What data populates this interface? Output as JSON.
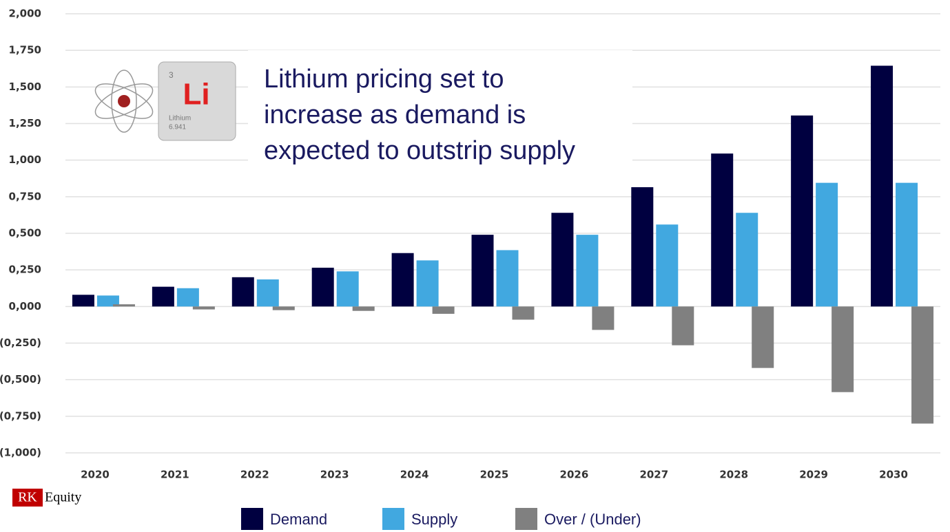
{
  "chart_data": {
    "type": "bar",
    "categories": [
      "2020",
      "2021",
      "2022",
      "2023",
      "2024",
      "2025",
      "2026",
      "2027",
      "2028",
      "2029",
      "2030"
    ],
    "series": [
      {
        "name": "Demand",
        "color": "#000040",
        "values": [
          0.08,
          0.135,
          0.2,
          0.265,
          0.365,
          0.49,
          0.64,
          0.815,
          1.045,
          1.305,
          1.645
        ]
      },
      {
        "name": "Supply",
        "color": "#41a8e0",
        "values": [
          0.075,
          0.125,
          0.185,
          0.24,
          0.315,
          0.385,
          0.49,
          0.56,
          0.64,
          0.845,
          0.845
        ]
      },
      {
        "name": "Over / (Under)",
        "color": "#808080",
        "values": [
          0.015,
          -0.02,
          -0.025,
          -0.03,
          -0.05,
          -0.09,
          -0.16,
          -0.265,
          -0.42,
          -0.585,
          -0.8
        ]
      }
    ],
    "ylim": [
      -1,
      2
    ],
    "yticks": [
      {
        "value": 2,
        "label": "2,000"
      },
      {
        "value": 1.75,
        "label": "1,750"
      },
      {
        "value": 1.5,
        "label": "1,500"
      },
      {
        "value": 1.25,
        "label": "1,250"
      },
      {
        "value": 1,
        "label": "1,000"
      },
      {
        "value": 0.75,
        "label": "0,750"
      },
      {
        "value": 0.5,
        "label": "0,500"
      },
      {
        "value": 0.25,
        "label": "0,250"
      },
      {
        "value": 0,
        "label": "0,000"
      },
      {
        "value": -0.25,
        "label": "(0,250)"
      },
      {
        "value": -0.5,
        "label": "(0,500)"
      },
      {
        "value": -0.75,
        "label": "(0,750)"
      },
      {
        "value": -1,
        "label": "(1,000)"
      }
    ],
    "negative_tick_color": "#ff0000",
    "grid": true,
    "legend": "bottom",
    "annotation_lines": [
      "Lithium pricing set to",
      "increase as demand is",
      "expected to outstrip supply"
    ],
    "element": {
      "number": "3",
      "symbol": "Li",
      "name": "Lithium",
      "mass": "6.941"
    },
    "logo": {
      "mark": "RK",
      "name": "Equity"
    }
  }
}
